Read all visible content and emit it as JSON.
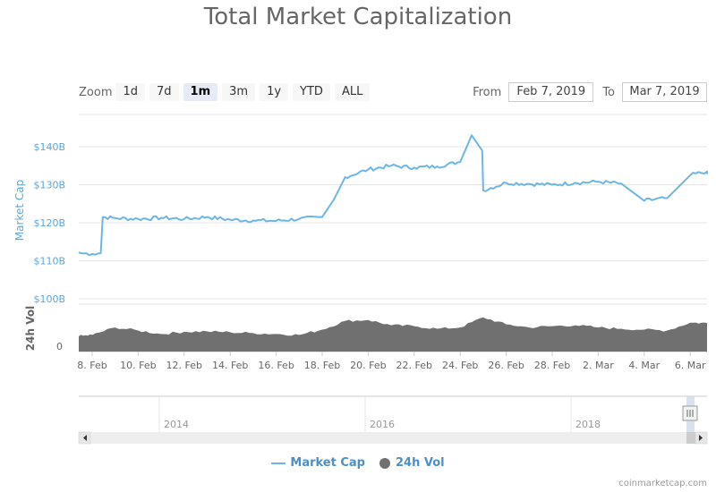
{
  "title": "Total Market Capitalization",
  "zoom": {
    "label": "Zoom",
    "buttons": [
      "1d",
      "7d",
      "1m",
      "3m",
      "1y",
      "YTD",
      "ALL"
    ],
    "active": "1m"
  },
  "range": {
    "from_label": "From",
    "from_value": "Feb 7, 2019",
    "to_label": "To",
    "to_value": "Mar 7, 2019"
  },
  "legend": {
    "market_cap": "Market Cap",
    "volume": "24h Vol"
  },
  "credit": "coinmarketcap.com",
  "colors": {
    "market_cap_line": "#6cb6e6",
    "volume_area": "#707070",
    "axis_text_blue": "#5aa6dd"
  },
  "chart_data": {
    "type": "line",
    "title": "Total Market Capitalization",
    "xlabel": "",
    "ylabel": "Market Cap",
    "ylim": [
      100,
      140
    ],
    "y_ticks": [
      "$100B",
      "$110B",
      "$120B",
      "$130B",
      "$140B"
    ],
    "x_ticks": [
      "8. Feb",
      "10. Feb",
      "12. Feb",
      "14. Feb",
      "16. Feb",
      "18. Feb",
      "20. Feb",
      "22. Feb",
      "24. Feb",
      "26. Feb",
      "28. Feb",
      "2. Mar",
      "4. Mar",
      "6. Mar"
    ],
    "grid": true,
    "series": [
      {
        "name": "Market Cap",
        "unit": "$B",
        "points": [
          [
            "2019-02-07",
            112.2
          ],
          [
            "2019-02-07T12:00",
            112.0
          ],
          [
            "2019-02-08",
            111.8
          ],
          [
            "2019-02-08T09:00",
            112.0
          ],
          [
            "2019-02-08T11:00",
            121.5
          ],
          [
            "2019-02-09",
            121.2
          ],
          [
            "2019-02-10",
            121.0
          ],
          [
            "2019-02-11",
            121.3
          ],
          [
            "2019-02-12",
            121.0
          ],
          [
            "2019-02-13",
            121.5
          ],
          [
            "2019-02-14",
            120.8
          ],
          [
            "2019-02-15",
            120.6
          ],
          [
            "2019-02-16",
            120.5
          ],
          [
            "2019-02-17",
            121.0
          ],
          [
            "2019-02-18",
            121.5
          ],
          [
            "2019-02-18T12:00",
            126.0
          ],
          [
            "2019-02-19",
            132.0
          ],
          [
            "2019-02-20",
            134.0
          ],
          [
            "2019-02-21",
            135.0
          ],
          [
            "2019-02-22",
            134.5
          ],
          [
            "2019-02-23",
            134.8
          ],
          [
            "2019-02-24",
            136.0
          ],
          [
            "2019-02-24T12:00",
            143.0
          ],
          [
            "2019-02-24T23:00",
            139.0
          ],
          [
            "2019-02-25",
            128.5
          ],
          [
            "2019-02-26",
            130.5
          ],
          [
            "2019-02-27",
            130.2
          ],
          [
            "2019-02-28",
            130.0
          ],
          [
            "2019-03-01",
            130.5
          ],
          [
            "2019-03-02",
            130.8
          ],
          [
            "2019-03-03",
            130.3
          ],
          [
            "2019-03-04",
            125.8
          ],
          [
            "2019-03-05",
            126.5
          ],
          [
            "2019-03-06",
            132.5
          ],
          [
            "2019-03-07",
            133.5
          ],
          [
            "2019-03-07T12:00",
            132.8
          ]
        ]
      },
      {
        "name": "24h Vol",
        "unit": "relative",
        "points": [
          [
            "2019-02-07",
            0.35
          ],
          [
            "2019-02-08",
            0.38
          ],
          [
            "2019-02-09",
            0.55
          ],
          [
            "2019-02-10",
            0.48
          ],
          [
            "2019-02-11",
            0.4
          ],
          [
            "2019-02-12",
            0.45
          ],
          [
            "2019-02-13",
            0.46
          ],
          [
            "2019-02-14",
            0.44
          ],
          [
            "2019-02-15",
            0.42
          ],
          [
            "2019-02-16",
            0.4
          ],
          [
            "2019-02-17",
            0.38
          ],
          [
            "2019-02-18",
            0.5
          ],
          [
            "2019-02-19",
            0.7
          ],
          [
            "2019-02-20",
            0.72
          ],
          [
            "2019-02-21",
            0.6
          ],
          [
            "2019-02-22",
            0.58
          ],
          [
            "2019-02-23",
            0.52
          ],
          [
            "2019-02-24",
            0.55
          ],
          [
            "2019-02-25",
            0.78
          ],
          [
            "2019-02-26",
            0.62
          ],
          [
            "2019-02-27",
            0.55
          ],
          [
            "2019-02-28",
            0.58
          ],
          [
            "2019-03-01",
            0.6
          ],
          [
            "2019-03-02",
            0.55
          ],
          [
            "2019-03-03",
            0.52
          ],
          [
            "2019-03-04",
            0.5
          ],
          [
            "2019-03-05",
            0.48
          ],
          [
            "2019-03-06",
            0.66
          ],
          [
            "2019-03-07",
            0.65
          ]
        ]
      }
    ]
  },
  "navigator": {
    "year_labels": [
      "2014",
      "2016",
      "2018"
    ]
  },
  "volume_axis": {
    "label": "24h Vol",
    "zero_tick": "0"
  }
}
